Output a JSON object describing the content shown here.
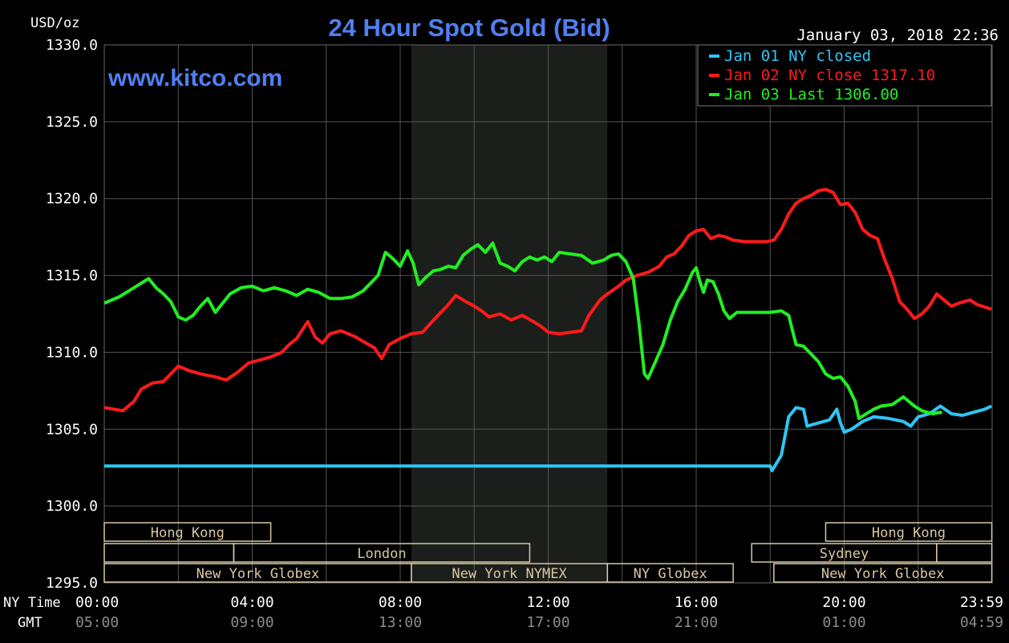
{
  "chart_data": {
    "type": "line",
    "title": "24 Hour Spot Gold (Bid)",
    "watermark": "www.kitco.com",
    "timestamp": "January 03, 2018 22:36",
    "ylabel": "USD/oz",
    "ylim": [
      1295,
      1330
    ],
    "yticks": [
      "1330.0",
      "1325.0",
      "1320.0",
      "1315.0",
      "1310.0",
      "1305.0",
      "1300.0",
      "1295.0"
    ],
    "xlim": [
      0,
      24
    ],
    "x_row_labels": {
      "ny": "NY Time",
      "gmt": "GMT"
    },
    "xticks_ny": [
      "00:00",
      "04:00",
      "08:00",
      "12:00",
      "16:00",
      "20:00",
      "23:59"
    ],
    "xticks_gmt": [
      "05:00",
      "09:00",
      "13:00",
      "17:00",
      "21:00",
      "01:00",
      "04:59"
    ],
    "grid": true,
    "legend_position": "top-right",
    "colors": {
      "background": "#000000",
      "grid": "#555555",
      "title": "#4f7ff0",
      "axis_text": "#ffffff",
      "gmt_text": "#8c8c8c",
      "highlight": "#1b1e1b",
      "session_box": "#d8c7a2"
    },
    "series": [
      {
        "name": "Jan 01 NY closed",
        "color": "#2ec5f5",
        "points": [
          [
            0,
            1302.6
          ],
          [
            18.0,
            1302.6
          ],
          [
            18.05,
            1302.3
          ],
          [
            18.3,
            1303.3
          ],
          [
            18.5,
            1305.8
          ],
          [
            18.7,
            1306.4
          ],
          [
            18.9,
            1306.3
          ],
          [
            19.0,
            1305.2
          ],
          [
            19.3,
            1305.4
          ],
          [
            19.6,
            1305.6
          ],
          [
            19.8,
            1306.3
          ],
          [
            19.9,
            1305.4
          ],
          [
            20.0,
            1304.8
          ],
          [
            20.2,
            1305.0
          ],
          [
            20.5,
            1305.5
          ],
          [
            20.8,
            1305.8
          ],
          [
            21.2,
            1305.7
          ],
          [
            21.6,
            1305.5
          ],
          [
            21.8,
            1305.2
          ],
          [
            22.0,
            1305.8
          ],
          [
            22.3,
            1306.0
          ],
          [
            22.6,
            1306.5
          ],
          [
            22.9,
            1306.0
          ],
          [
            23.2,
            1305.9
          ],
          [
            23.5,
            1306.1
          ],
          [
            23.8,
            1306.3
          ],
          [
            23.98,
            1306.5
          ]
        ]
      },
      {
        "name": "Jan 02 NY close 1317.10",
        "color": "#ff1a1a",
        "points": [
          [
            0,
            1306.4
          ],
          [
            0.5,
            1306.2
          ],
          [
            0.8,
            1306.8
          ],
          [
            1.0,
            1307.6
          ],
          [
            1.3,
            1308.0
          ],
          [
            1.6,
            1308.1
          ],
          [
            1.8,
            1308.6
          ],
          [
            2.0,
            1309.1
          ],
          [
            2.3,
            1308.8
          ],
          [
            2.6,
            1308.6
          ],
          [
            3.0,
            1308.4
          ],
          [
            3.3,
            1308.2
          ],
          [
            3.6,
            1308.7
          ],
          [
            3.9,
            1309.3
          ],
          [
            4.2,
            1309.5
          ],
          [
            4.5,
            1309.7
          ],
          [
            4.8,
            1310.0
          ],
          [
            5.0,
            1310.5
          ],
          [
            5.2,
            1310.9
          ],
          [
            5.5,
            1312.0
          ],
          [
            5.7,
            1311.0
          ],
          [
            5.9,
            1310.6
          ],
          [
            6.1,
            1311.2
          ],
          [
            6.4,
            1311.4
          ],
          [
            6.8,
            1311.0
          ],
          [
            7.0,
            1310.7
          ],
          [
            7.3,
            1310.3
          ],
          [
            7.5,
            1309.6
          ],
          [
            7.7,
            1310.5
          ],
          [
            8.0,
            1310.9
          ],
          [
            8.3,
            1311.2
          ],
          [
            8.6,
            1311.3
          ],
          [
            8.9,
            1312.1
          ],
          [
            9.1,
            1312.6
          ],
          [
            9.3,
            1313.1
          ],
          [
            9.5,
            1313.7
          ],
          [
            9.7,
            1313.4
          ],
          [
            10.0,
            1313.0
          ],
          [
            10.2,
            1312.7
          ],
          [
            10.4,
            1312.3
          ],
          [
            10.7,
            1312.5
          ],
          [
            11.0,
            1312.1
          ],
          [
            11.3,
            1312.4
          ],
          [
            11.6,
            1312.0
          ],
          [
            11.8,
            1311.7
          ],
          [
            12.0,
            1311.3
          ],
          [
            12.3,
            1311.2
          ],
          [
            12.6,
            1311.3
          ],
          [
            12.9,
            1311.4
          ],
          [
            13.1,
            1312.4
          ],
          [
            13.4,
            1313.4
          ],
          [
            13.6,
            1313.8
          ],
          [
            13.9,
            1314.3
          ],
          [
            14.1,
            1314.7
          ],
          [
            14.4,
            1315.0
          ],
          [
            14.7,
            1315.2
          ],
          [
            15.0,
            1315.6
          ],
          [
            15.2,
            1316.2
          ],
          [
            15.4,
            1316.4
          ],
          [
            15.6,
            1316.9
          ],
          [
            15.8,
            1317.6
          ],
          [
            16.0,
            1317.9
          ],
          [
            16.2,
            1318.0
          ],
          [
            16.4,
            1317.4
          ],
          [
            16.6,
            1317.6
          ],
          [
            16.8,
            1317.5
          ],
          [
            17.0,
            1317.3
          ],
          [
            17.3,
            1317.2
          ],
          [
            17.6,
            1317.2
          ],
          [
            17.9,
            1317.2
          ],
          [
            18.1,
            1317.3
          ],
          [
            18.3,
            1318.0
          ],
          [
            18.5,
            1319.0
          ],
          [
            18.7,
            1319.7
          ],
          [
            18.9,
            1320.0
          ],
          [
            19.1,
            1320.2
          ],
          [
            19.3,
            1320.5
          ],
          [
            19.5,
            1320.6
          ],
          [
            19.7,
            1320.4
          ],
          [
            19.9,
            1319.6
          ],
          [
            20.1,
            1319.7
          ],
          [
            20.3,
            1319.1
          ],
          [
            20.5,
            1318.0
          ],
          [
            20.7,
            1317.6
          ],
          [
            20.9,
            1317.4
          ],
          [
            21.1,
            1316.0
          ],
          [
            21.3,
            1314.8
          ],
          [
            21.5,
            1313.3
          ],
          [
            21.7,
            1312.8
          ],
          [
            21.9,
            1312.2
          ],
          [
            22.1,
            1312.5
          ],
          [
            22.3,
            1313.0
          ],
          [
            22.5,
            1313.8
          ],
          [
            22.7,
            1313.4
          ],
          [
            22.9,
            1313.0
          ],
          [
            23.1,
            1313.2
          ],
          [
            23.4,
            1313.4
          ],
          [
            23.6,
            1313.1
          ],
          [
            23.98,
            1312.8
          ]
        ]
      },
      {
        "name": "Jan 03 Last 1306.00",
        "color": "#22ee22",
        "points": [
          [
            0,
            1313.2
          ],
          [
            0.4,
            1313.6
          ],
          [
            0.8,
            1314.2
          ],
          [
            1.0,
            1314.5
          ],
          [
            1.2,
            1314.8
          ],
          [
            1.4,
            1314.2
          ],
          [
            1.6,
            1313.8
          ],
          [
            1.8,
            1313.3
          ],
          [
            2.0,
            1312.3
          ],
          [
            2.2,
            1312.1
          ],
          [
            2.4,
            1312.4
          ],
          [
            2.6,
            1313.0
          ],
          [
            2.8,
            1313.5
          ],
          [
            3.0,
            1312.6
          ],
          [
            3.2,
            1313.2
          ],
          [
            3.4,
            1313.8
          ],
          [
            3.7,
            1314.2
          ],
          [
            4.0,
            1314.3
          ],
          [
            4.3,
            1314.0
          ],
          [
            4.6,
            1314.2
          ],
          [
            4.9,
            1314.0
          ],
          [
            5.2,
            1313.7
          ],
          [
            5.5,
            1314.1
          ],
          [
            5.8,
            1313.9
          ],
          [
            6.1,
            1313.5
          ],
          [
            6.4,
            1313.5
          ],
          [
            6.7,
            1313.6
          ],
          [
            7.0,
            1314.0
          ],
          [
            7.2,
            1314.5
          ],
          [
            7.4,
            1315.0
          ],
          [
            7.6,
            1316.5
          ],
          [
            7.8,
            1316.1
          ],
          [
            8.0,
            1315.6
          ],
          [
            8.2,
            1316.6
          ],
          [
            8.35,
            1315.8
          ],
          [
            8.5,
            1314.4
          ],
          [
            8.7,
            1314.9
          ],
          [
            8.9,
            1315.3
          ],
          [
            9.1,
            1315.4
          ],
          [
            9.3,
            1315.6
          ],
          [
            9.5,
            1315.5
          ],
          [
            9.7,
            1316.3
          ],
          [
            9.9,
            1316.7
          ],
          [
            10.1,
            1317.0
          ],
          [
            10.3,
            1316.5
          ],
          [
            10.5,
            1317.1
          ],
          [
            10.7,
            1315.8
          ],
          [
            10.9,
            1315.6
          ],
          [
            11.1,
            1315.3
          ],
          [
            11.3,
            1315.9
          ],
          [
            11.5,
            1316.2
          ],
          [
            11.7,
            1316.0
          ],
          [
            11.9,
            1316.2
          ],
          [
            12.1,
            1315.9
          ],
          [
            12.3,
            1316.5
          ],
          [
            12.6,
            1316.4
          ],
          [
            12.9,
            1316.3
          ],
          [
            13.2,
            1315.8
          ],
          [
            13.5,
            1316.0
          ],
          [
            13.7,
            1316.3
          ],
          [
            13.9,
            1316.4
          ],
          [
            14.1,
            1315.9
          ],
          [
            14.3,
            1314.8
          ],
          [
            14.45,
            1312.0
          ],
          [
            14.6,
            1308.6
          ],
          [
            14.7,
            1308.3
          ],
          [
            14.9,
            1309.4
          ],
          [
            15.1,
            1310.5
          ],
          [
            15.3,
            1312.1
          ],
          [
            15.5,
            1313.3
          ],
          [
            15.7,
            1314.1
          ],
          [
            15.9,
            1315.2
          ],
          [
            16.0,
            1315.5
          ],
          [
            16.1,
            1314.6
          ],
          [
            16.2,
            1313.9
          ],
          [
            16.3,
            1314.7
          ],
          [
            16.45,
            1314.6
          ],
          [
            16.6,
            1313.8
          ],
          [
            16.75,
            1312.7
          ],
          [
            16.9,
            1312.2
          ],
          [
            17.1,
            1312.6
          ],
          [
            17.4,
            1312.6
          ],
          [
            17.7,
            1312.6
          ],
          [
            18.0,
            1312.6
          ],
          [
            18.3,
            1312.7
          ],
          [
            18.5,
            1312.4
          ],
          [
            18.7,
            1310.5
          ],
          [
            18.9,
            1310.4
          ],
          [
            19.1,
            1309.9
          ],
          [
            19.3,
            1309.4
          ],
          [
            19.5,
            1308.6
          ],
          [
            19.7,
            1308.3
          ],
          [
            19.9,
            1308.4
          ],
          [
            20.1,
            1307.8
          ],
          [
            20.3,
            1306.8
          ],
          [
            20.4,
            1305.7
          ],
          [
            20.6,
            1306.0
          ],
          [
            20.8,
            1306.3
          ],
          [
            21.0,
            1306.5
          ],
          [
            21.3,
            1306.6
          ],
          [
            21.6,
            1307.1
          ],
          [
            21.9,
            1306.5
          ],
          [
            22.1,
            1306.2
          ],
          [
            22.4,
            1306.0
          ],
          [
            22.6,
            1306.1
          ],
          [
            22.63,
            1306.0
          ]
        ]
      }
    ],
    "highlight_x": [
      8.3,
      13.6
    ],
    "sessions": {
      "row1": [
        {
          "label": "Hong Kong",
          "x": [
            0,
            4.5
          ]
        },
        {
          "label": "Hong Kong",
          "x": [
            19.5,
            23.99
          ]
        }
      ],
      "row2": [
        {
          "label": "",
          "x": [
            0,
            3.5
          ]
        },
        {
          "label": "London",
          "x": [
            3.5,
            11.5
          ]
        },
        {
          "label": "Sydney",
          "x": [
            17.5,
            22.5
          ]
        },
        {
          "label": "",
          "x": [
            22.5,
            23.99
          ]
        }
      ],
      "row3": [
        {
          "label": "New York Globex",
          "x": [
            0,
            8.3
          ]
        },
        {
          "label": "New York NYMEX",
          "x": [
            8.3,
            13.6
          ]
        },
        {
          "label": "NY Globex",
          "x": [
            13.6,
            17.0
          ]
        },
        {
          "label": "New York Globex",
          "x": [
            18.1,
            23.99
          ]
        }
      ]
    }
  }
}
